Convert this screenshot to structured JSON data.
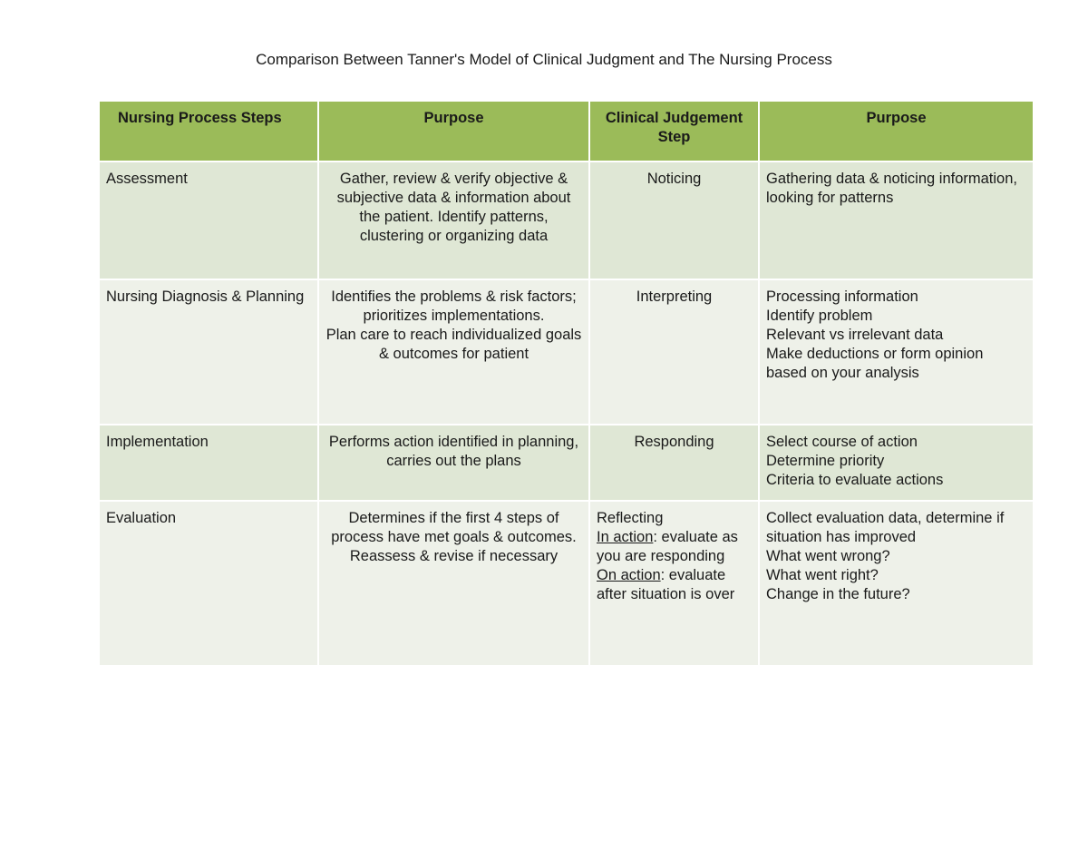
{
  "header": {
    "title": "Comparison Between Tanner's Model of Clinical Judgment and The Nursing Process"
  },
  "table": {
    "columns": [
      "Nursing Process Steps",
      "Purpose",
      "Clinical Judgement Step",
      "Purpose"
    ],
    "rows": [
      [
        [
          "Assessment"
        ],
        [
          "Gather, review & verify objective & subjective data & information about the patient. Identify patterns, clustering or organizing data"
        ],
        [
          "Noticing"
        ],
        [
          "Gathering data & noticing information, looking for patterns"
        ]
      ],
      [
        [
          "Nursing Diagnosis & Planning"
        ],
        [
          "Identifies the problems & risk factors; prioritizes implementations.",
          "Plan care to reach individualized goals & outcomes for patient"
        ],
        [
          "Interpreting"
        ],
        [
          "Processing information",
          "Identify problem",
          "Relevant vs irrelevant data",
          "Make deductions or form opinion based on your analysis"
        ]
      ],
      [
        [
          "Implementation"
        ],
        [
          "Performs action identified in planning, carries out the plans"
        ],
        [
          "Responding"
        ],
        [
          "Select course of action",
          "Determine priority",
          "Criteria to evaluate actions"
        ]
      ],
      [
        [
          "Evaluation"
        ],
        [
          "Determines if the first 4 steps of process have met goals & outcomes. Reassess & revise if necessary"
        ],
        [
          "Reflecting",
          {
            "underlined": "In action",
            "text": ": evaluate as you are responding"
          },
          {
            "underlined": "On action",
            "text": ": evaluate after situation is over"
          }
        ],
        [
          "Collect evaluation data, determine if situation has improved",
          "What went wrong?",
          "What went right?",
          "Change in the future?"
        ]
      ]
    ]
  }
}
